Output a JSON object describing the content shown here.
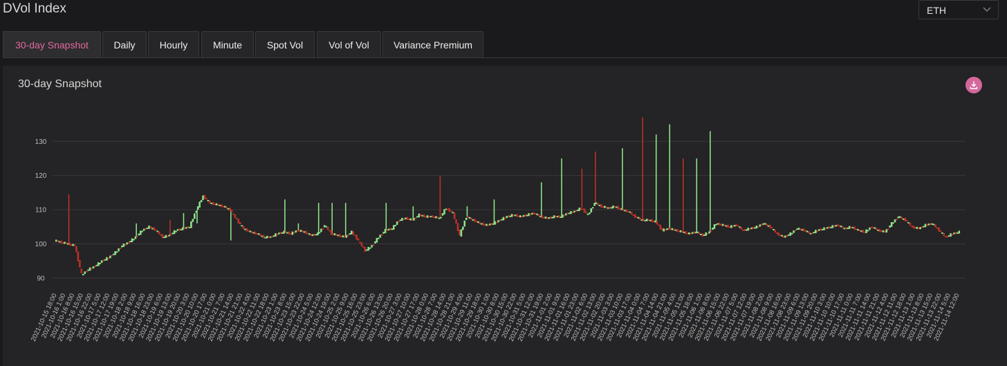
{
  "header": {
    "title": "DVol Index"
  },
  "asset_select": {
    "value": "ETH"
  },
  "tabs": [
    {
      "label": "30-day Snapshot",
      "active": true
    },
    {
      "label": "Daily"
    },
    {
      "label": "Hourly"
    },
    {
      "label": "Minute"
    },
    {
      "label": "Spot Vol"
    },
    {
      "label": "Vol of Vol"
    },
    {
      "label": "Variance Premium"
    }
  ],
  "panel": {
    "title": "30-day Snapshot",
    "download_icon": "download-icon"
  },
  "colors": {
    "accent": "#e06a9e",
    "up": "#8ee38a",
    "down": "#b8322a",
    "grid": "#3a393b"
  },
  "chart_data": {
    "type": "candlestick",
    "title": "",
    "xlabel": "",
    "ylabel": "",
    "ylim": [
      88,
      140
    ],
    "yticks": [
      90,
      100,
      110,
      120,
      130
    ],
    "grid": true,
    "xticks": [
      "2021-10-15 18:00",
      "2021-10-16 1:00",
      "2021-10-16 8:00",
      "2021-10-16 15:00",
      "2021-10-16 22:00",
      "2021-10-17 5:00",
      "2021-10-17 12:00",
      "2021-10-17 19:00",
      "2021-10-18 2:00",
      "2021-10-18 9:00",
      "2021-10-18 16:00",
      "2021-10-18 23:00",
      "2021-10-19 6:00",
      "2021-10-19 13:00",
      "2021-10-19 20:00",
      "2021-10-20 3:00",
      "2021-10-20 10:00",
      "2021-10-20 17:00",
      "2021-10-21 0:00",
      "2021-10-21 7:00",
      "2021-10-21 14:00",
      "2021-10-21 21:00",
      "2021-10-22 4:00",
      "2021-10-22 11:00",
      "2021-10-22 18:00",
      "2021-10-23 1:00",
      "2021-10-23 8:00",
      "2021-10-23 15:00",
      "2021-10-23 22:00",
      "2021-10-24 5:00",
      "2021-10-24 12:00",
      "2021-10-24 19:00",
      "2021-10-25 2:00",
      "2021-10-25 9:00",
      "2021-10-25 16:00",
      "2021-10-25 23:00",
      "2021-10-26 6:00",
      "2021-10-26 13:00",
      "2021-10-26 20:00",
      "2021-10-27 3:00",
      "2021-10-27 10:00",
      "2021-10-27 17:00",
      "2021-10-28 0:00",
      "2021-10-28 7:00",
      "2021-10-28 14:00",
      "2021-10-28 21:00",
      "2021-10-29 4:00",
      "2021-10-29 11:00",
      "2021-10-29 18:00",
      "2021-10-30 1:00",
      "2021-10-30 8:00",
      "2021-10-30 15:00",
      "2021-10-30 22:00",
      "2021-10-31 5:00",
      "2021-10-31 12:00",
      "2021-10-31 19:00",
      "2021-11-01 2:00",
      "2021-11-01 9:00",
      "2021-11-01 16:00",
      "2021-11-01 23:00",
      "2021-11-02 6:00",
      "2021-11-02 13:00",
      "2021-11-02 20:00",
      "2021-11-03 3:00",
      "2021-11-03 10:00",
      "2021-11-03 17:00",
      "2021-11-04 0:00",
      "2021-11-04 7:00",
      "2021-11-04 14:00",
      "2021-11-04 21:00",
      "2021-11-05 4:00",
      "2021-11-05 11:00",
      "2021-11-05 18:00",
      "2021-11-06 1:00",
      "2021-11-06 8:00",
      "2021-11-06 15:00",
      "2021-11-06 22:00",
      "2021-11-07 5:00",
      "2021-11-07 12:00",
      "2021-11-07 19:00",
      "2021-11-08 2:00",
      "2021-11-08 9:00",
      "2021-11-08 16:00",
      "2021-11-08 23:00",
      "2021-11-09 6:00",
      "2021-11-09 13:00",
      "2021-11-09 20:00",
      "2021-11-10 3:00",
      "2021-11-10 10:00",
      "2021-11-10 17:00",
      "2021-11-11 0:00",
      "2021-11-11 7:00",
      "2021-11-11 14:00",
      "2021-11-11 21:00",
      "2021-11-12 4:00",
      "2021-11-12 11:00",
      "2021-11-12 18:00",
      "2021-11-13 1:00",
      "2021-11-13 8:00",
      "2021-11-13 15:00",
      "2021-11-13 22:00",
      "2021-11-14 5:00",
      "2021-11-14 12:00"
    ],
    "path": [
      [
        0,
        101
      ],
      [
        1,
        100.5
      ],
      [
        2,
        100
      ],
      [
        3,
        99.5
      ],
      [
        4,
        91
      ],
      [
        5,
        92.5
      ],
      [
        6,
        93.5
      ],
      [
        7,
        95
      ],
      [
        8,
        96
      ],
      [
        9,
        97.5
      ],
      [
        10,
        99.5
      ],
      [
        11,
        100.5
      ],
      [
        12,
        102
      ],
      [
        13,
        104
      ],
      [
        14,
        105
      ],
      [
        15,
        104
      ],
      [
        16,
        102
      ],
      [
        17,
        102.5
      ],
      [
        18,
        104
      ],
      [
        19,
        104.5
      ],
      [
        20,
        105
      ],
      [
        21,
        110
      ],
      [
        22,
        114
      ],
      [
        23,
        112
      ],
      [
        24,
        111.5
      ],
      [
        25,
        111
      ],
      [
        26,
        110
      ],
      [
        27,
        107
      ],
      [
        28,
        104.5
      ],
      [
        29,
        103.5
      ],
      [
        30,
        103
      ],
      [
        31,
        102
      ],
      [
        32,
        102
      ],
      [
        33,
        103
      ],
      [
        34,
        103.5
      ],
      [
        35,
        103
      ],
      [
        36,
        104
      ],
      [
        37,
        103.5
      ],
      [
        38,
        102.5
      ],
      [
        39,
        103
      ],
      [
        40,
        105.5
      ],
      [
        41,
        103
      ],
      [
        42,
        102.5
      ],
      [
        43,
        102
      ],
      [
        44,
        103.5
      ],
      [
        45,
        101
      ],
      [
        46,
        98
      ],
      [
        47,
        99.5
      ],
      [
        48,
        102
      ],
      [
        49,
        104
      ],
      [
        50,
        104.5
      ],
      [
        51,
        107
      ],
      [
        52,
        107.5
      ],
      [
        53,
        107
      ],
      [
        54,
        108.5
      ],
      [
        55,
        108
      ],
      [
        56,
        108
      ],
      [
        57,
        107.5
      ],
      [
        58,
        110.5
      ],
      [
        59,
        109
      ],
      [
        60,
        102.5
      ],
      [
        61,
        108
      ],
      [
        62,
        107
      ],
      [
        63,
        106
      ],
      [
        64,
        105.5
      ],
      [
        65,
        106
      ],
      [
        66,
        107
      ],
      [
        67,
        108
      ],
      [
        68,
        108.5
      ],
      [
        69,
        108
      ],
      [
        70,
        108.5
      ],
      [
        71,
        109
      ],
      [
        72,
        108
      ],
      [
        73,
        107.5
      ],
      [
        74,
        108
      ],
      [
        75,
        108
      ],
      [
        76,
        109
      ],
      [
        77,
        109.5
      ],
      [
        78,
        110.5
      ],
      [
        79,
        108.5
      ],
      [
        80,
        112
      ],
      [
        81,
        111
      ],
      [
        82,
        110.5
      ],
      [
        83,
        111
      ],
      [
        84,
        110
      ],
      [
        85,
        109.5
      ],
      [
        86,
        108
      ],
      [
        87,
        107
      ],
      [
        88,
        107
      ],
      [
        89,
        106.5
      ],
      [
        90,
        104
      ],
      [
        91,
        104.5
      ],
      [
        92,
        104
      ],
      [
        93,
        103.5
      ],
      [
        94,
        103
      ],
      [
        95,
        103.5
      ],
      [
        96,
        102.5
      ],
      [
        97,
        103.5
      ],
      [
        98,
        106
      ],
      [
        99,
        105.5
      ],
      [
        100,
        105
      ],
      [
        101,
        105.5
      ],
      [
        102,
        104
      ],
      [
        103,
        104.5
      ],
      [
        104,
        105
      ],
      [
        105,
        106
      ],
      [
        106,
        105
      ],
      [
        107,
        103
      ],
      [
        108,
        102
      ],
      [
        109,
        103
      ],
      [
        110,
        104.5
      ],
      [
        111,
        104
      ],
      [
        112,
        103
      ],
      [
        113,
        104
      ],
      [
        114,
        104.5
      ],
      [
        115,
        105
      ],
      [
        116,
        105.5
      ],
      [
        117,
        104.5
      ],
      [
        118,
        105
      ],
      [
        119,
        104
      ],
      [
        120,
        103.5
      ],
      [
        121,
        105
      ],
      [
        122,
        104
      ],
      [
        123,
        103.5
      ],
      [
        124,
        106
      ],
      [
        125,
        108
      ],
      [
        126,
        107
      ],
      [
        127,
        105
      ],
      [
        128,
        104.5
      ],
      [
        129,
        105.5
      ],
      [
        130,
        106
      ],
      [
        131,
        104
      ],
      [
        132,
        102
      ],
      [
        133,
        103
      ],
      [
        134,
        103.5
      ]
    ],
    "spikes": [
      [
        2,
        114.5,
        "down"
      ],
      [
        12,
        106,
        "up"
      ],
      [
        17,
        107,
        "down"
      ],
      [
        19,
        109,
        "up"
      ],
      [
        21,
        106,
        "up"
      ],
      [
        26,
        101,
        "up"
      ],
      [
        34,
        113,
        "up"
      ],
      [
        36,
        106,
        "up"
      ],
      [
        39,
        112,
        "up"
      ],
      [
        41,
        112,
        "up"
      ],
      [
        43,
        112,
        "up"
      ],
      [
        49,
        112,
        "up"
      ],
      [
        53,
        111,
        "up"
      ],
      [
        57,
        120,
        "down"
      ],
      [
        61,
        111,
        "up"
      ],
      [
        65,
        113,
        "up"
      ],
      [
        72,
        118,
        "up"
      ],
      [
        75,
        125,
        "up"
      ],
      [
        78,
        122,
        "down"
      ],
      [
        80,
        127,
        "down"
      ],
      [
        84,
        128,
        "up"
      ],
      [
        87,
        137,
        "down"
      ],
      [
        89,
        132,
        "up"
      ],
      [
        91,
        135,
        "up"
      ],
      [
        93,
        125,
        "down"
      ],
      [
        95,
        125,
        "up"
      ],
      [
        97,
        133,
        "up"
      ]
    ]
  }
}
